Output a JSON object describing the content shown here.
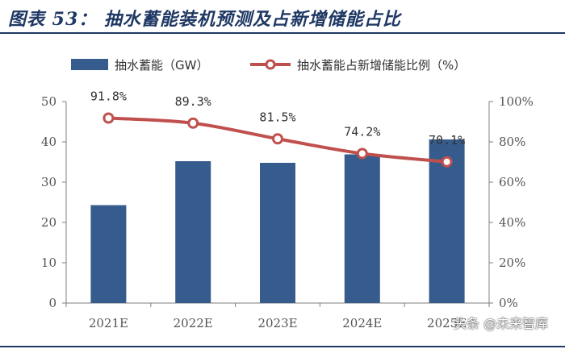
{
  "figure": {
    "title": "图表 53： 抽水蓄能装机预测及占新增储能占比"
  },
  "chart_data": {
    "type": "bar",
    "categories": [
      "2021E",
      "2022E",
      "2023E",
      "2024E",
      "2025E"
    ],
    "series": [
      {
        "name": "抽水蓄能（GW）",
        "type": "bar",
        "axis": "left",
        "values": [
          24.3,
          35.2,
          34.8,
          36.9,
          40.6
        ]
      },
      {
        "name": "抽水蓄能占新增储能比例（%）",
        "type": "line",
        "axis": "right",
        "values": [
          91.8,
          89.3,
          81.5,
          74.2,
          70.1
        ],
        "labels": [
          "91.8%",
          "89.3%",
          "81.5%",
          "74.2%",
          "70.1%"
        ]
      }
    ],
    "ylim": [
      0,
      50
    ],
    "yticks": [
      "0",
      "10",
      "20",
      "30",
      "40",
      "50"
    ],
    "y2lim": [
      0,
      100
    ],
    "y2ticks": [
      "0%",
      "20%",
      "40%",
      "60%",
      "80%",
      "100%"
    ],
    "legend_position": "top",
    "grid": false,
    "colors": {
      "bar": "#365c8d",
      "line": "#c0504d",
      "marker_fill": "#ffffff"
    }
  },
  "watermark": {
    "text": "头条 @未来智库"
  }
}
